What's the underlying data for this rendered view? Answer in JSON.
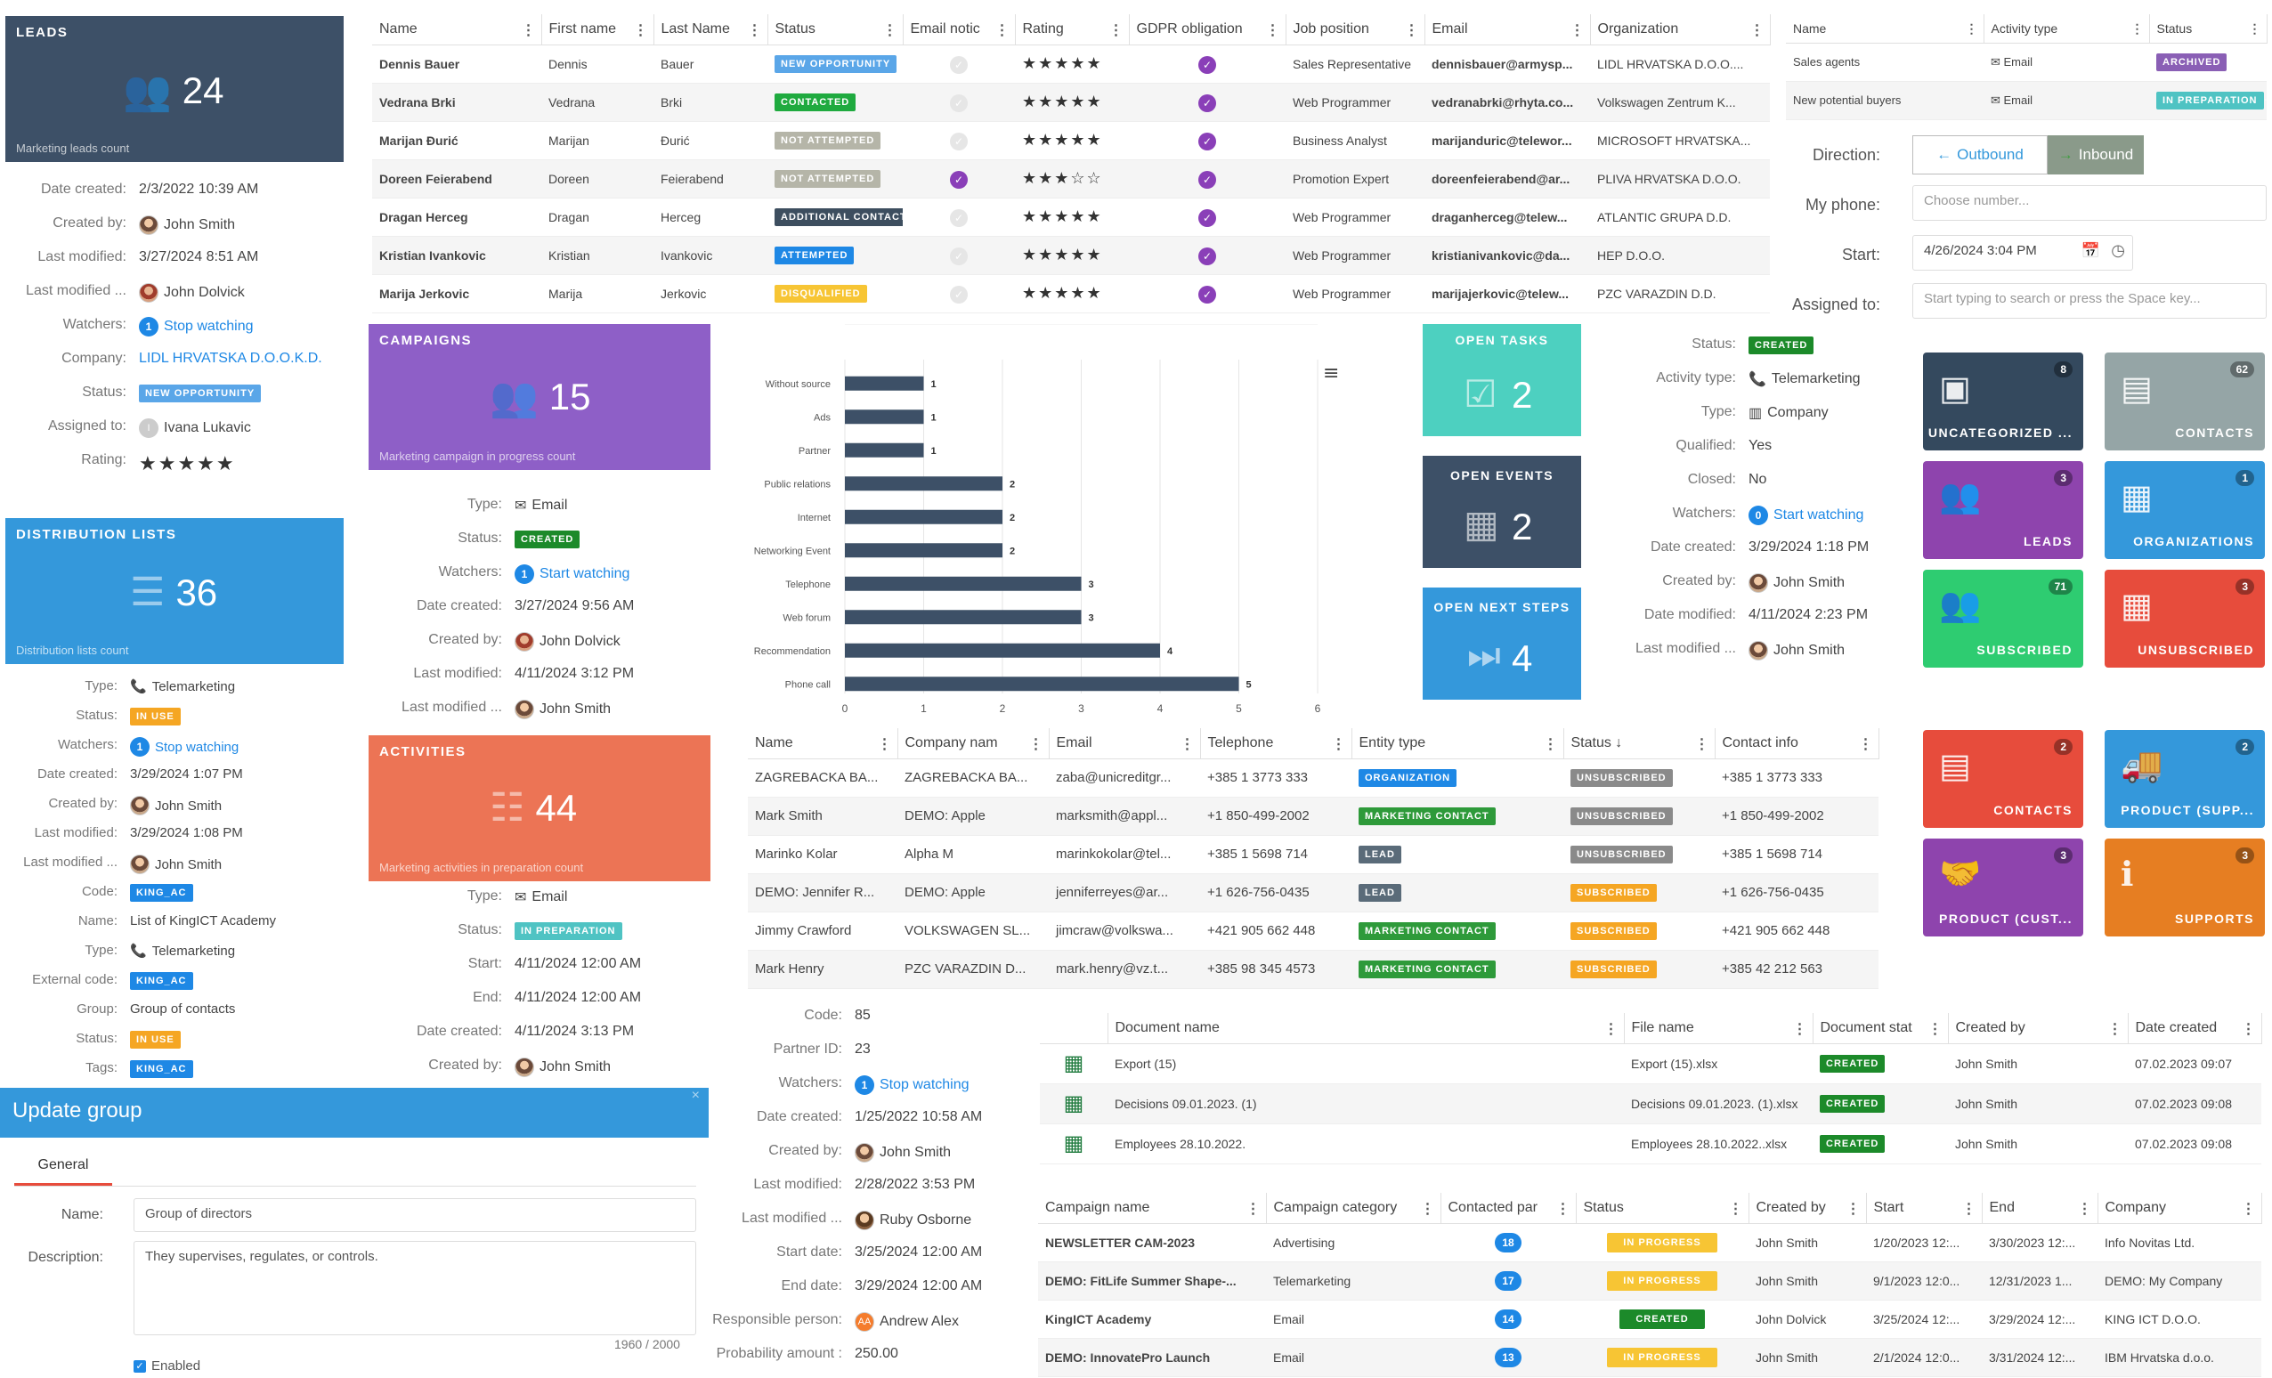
{
  "leads_card": {
    "title": "LEADS",
    "count": "24",
    "footer": "Marketing leads count"
  },
  "lead_fields": [
    {
      "label": "Date created:",
      "value": "2/3/2022 10:39 AM"
    },
    {
      "label": "Created by:",
      "value": "John Smith"
    },
    {
      "label": "Last modified:",
      "value": "3/27/2024 8:51 AM"
    },
    {
      "label": "Last modified ...",
      "value": "John Dolvick"
    },
    {
      "label": "Watchers:",
      "value": "Stop watching",
      "count": "1"
    },
    {
      "label": "Company:",
      "value": "LIDL HRVATSKA D.O.O.K.D."
    },
    {
      "label": "Status:",
      "value": "NEW OPPORTUNITY"
    },
    {
      "label": "Assigned to:",
      "value": "Ivana Lukavic",
      "initial": "I"
    },
    {
      "label": "Rating:",
      "value": "★★★★★"
    }
  ],
  "dist_card": {
    "title": "DISTRIBUTION LISTS",
    "count": "36",
    "footer": "Distribution lists count"
  },
  "dist_fields": [
    {
      "label": "Type:",
      "value": "Telemarketing"
    },
    {
      "label": "Status:",
      "value": "IN USE"
    },
    {
      "label": "Watchers:",
      "value": "Stop watching",
      "count": "1"
    },
    {
      "label": "Date created:",
      "value": "3/29/2024 1:07 PM"
    },
    {
      "label": "Created by:",
      "value": "John Smith"
    },
    {
      "label": "Last modified:",
      "value": "3/29/2024 1:08 PM"
    },
    {
      "label": "Last modified ...",
      "value": "John Smith"
    },
    {
      "label": "Code:",
      "value": "KING_AC"
    },
    {
      "label": "Name:",
      "value": "List of KingICT Academy"
    },
    {
      "label": "Type:",
      "value": "Telemarketing"
    },
    {
      "label": "External code:",
      "value": "KING_AC"
    },
    {
      "label": "Group:",
      "value": "Group of contacts"
    },
    {
      "label": "Status:",
      "value": "IN USE"
    },
    {
      "label": "Tags:",
      "value": "KING_AC"
    }
  ],
  "update_group": {
    "title": "Update group",
    "tab": "General",
    "name_label": "Name:",
    "name_value": "Group of directors",
    "desc_label": "Description:",
    "desc_value": "They supervises, regulates, or controls.",
    "counter": "1960 / 2000",
    "enabled": "Enabled",
    "close": "×"
  },
  "leads_table": {
    "headers": [
      "Name",
      "First name",
      "Last Name",
      "Status",
      "Email notic",
      "Rating",
      "GDPR obligation",
      "Job position",
      "Email",
      "Organization"
    ],
    "rows": [
      [
        "Dennis Bauer",
        "Dennis",
        "Bauer",
        "NEW OPPORTUNITY",
        "0",
        "★★★★★",
        "1",
        "Sales Representative",
        "dennisbauer@armysp...",
        "LIDL HRVATSKA D.O.O...."
      ],
      [
        "Vedrana Brki",
        "Vedrana",
        "Brki",
        "CONTACTED",
        "0",
        "★★★★★",
        "1",
        "Web Programmer",
        "vedranabrki@rhyta.co...",
        "Volkswagen Zentrum K..."
      ],
      [
        "Marijan Đurić",
        "Marijan",
        "Đurić",
        "NOT ATTEMPTED",
        "0",
        "★★★★★",
        "1",
        "Business Analyst",
        "marijanduric@telewor...",
        "MICROSOFT HRVATSKA..."
      ],
      [
        "Doreen Feierabend",
        "Doreen",
        "Feierabend",
        "NOT ATTEMPTED",
        "1",
        "★★★☆☆",
        "1",
        "Promotion Expert",
        "doreenfeierabend@ar...",
        "PLIVA HRVATSKA D.O.O."
      ],
      [
        "Dragan Herceg",
        "Dragan",
        "Herceg",
        "ADDITIONAL CONTACT",
        "0",
        "★★★★★",
        "1",
        "Web Programmer",
        "draganherceg@telew...",
        "ATLANTIC GRUPA D.D."
      ],
      [
        "Kristian Ivankovic",
        "Kristian",
        "Ivankovic",
        "ATTEMPTED",
        "0",
        "★★★★★",
        "1",
        "Web Programmer",
        "kristianivankovic@da...",
        "HEP D.O.O."
      ],
      [
        "Marija Jerkovic",
        "Marija",
        "Jerkovic",
        "DISQUALIFIED",
        "0",
        "★★★★★",
        "1",
        "Web Programmer",
        "marijajerkovic@telew...",
        "PZC VARAZDIN D.D."
      ]
    ]
  },
  "campaigns_card": {
    "title": "CAMPAIGNS",
    "count": "15",
    "footer": "Marketing campaign in progress count"
  },
  "campaign_fields": [
    {
      "label": "Type:",
      "value": "Email"
    },
    {
      "label": "Status:",
      "value": "CREATED"
    },
    {
      "label": "Watchers:",
      "value": "Start watching",
      "count": "1"
    },
    {
      "label": "Date created:",
      "value": "3/27/2024 9:56 AM"
    },
    {
      "label": "Created by:",
      "value": "John Dolvick"
    },
    {
      "label": "Last modified:",
      "value": "4/11/2024 3:12 PM"
    },
    {
      "label": "Last modified ...",
      "value": "John Smith"
    }
  ],
  "activities_card": {
    "title": "ACTIVITIES",
    "count": "44",
    "footer": "Marketing activities in preparation count"
  },
  "activity_fields": [
    {
      "label": "Type:",
      "value": "Email"
    },
    {
      "label": "Status:",
      "value": "IN PREPARATION"
    },
    {
      "label": "Start:",
      "value": "4/11/2024 12:00 AM"
    },
    {
      "label": "End:",
      "value": "4/11/2024 12:00 AM"
    },
    {
      "label": "Date created:",
      "value": "4/11/2024 3:13 PM"
    },
    {
      "label": "Created by:",
      "value": "John Smith"
    }
  ],
  "chart_data": {
    "type": "bar",
    "orientation": "horizontal",
    "categories": [
      "Without source",
      "Ads",
      "Partner",
      "Public relations",
      "Internet",
      "Networking Event",
      "Telephone",
      "Web forum",
      "Recommendation",
      "Phone call"
    ],
    "values": [
      1,
      1,
      1,
      2,
      2,
      2,
      3,
      3,
      4,
      5
    ],
    "xlim": [
      0,
      6
    ],
    "xticks": [
      "0",
      "1",
      "2",
      "3",
      "4",
      "5",
      "6"
    ],
    "color": "#3d5067",
    "grid": true,
    "menu_icon": "≡"
  },
  "open_tasks": {
    "title": "OPEN TASKS",
    "count": "2"
  },
  "open_events": {
    "title": "OPEN EVENTS",
    "count": "2"
  },
  "open_next_steps": {
    "title": "OPEN NEXT STEPS",
    "count": "4"
  },
  "activity_detail": [
    {
      "label": "Status:",
      "value": "CREATED"
    },
    {
      "label": "Activity type:",
      "value": "Telemarketing"
    },
    {
      "label": "Type:",
      "value": "Company"
    },
    {
      "label": "Qualified:",
      "value": "Yes"
    },
    {
      "label": "Closed:",
      "value": "No"
    },
    {
      "label": "Watchers:",
      "value": "Start watching",
      "count": "0"
    },
    {
      "label": "Date created:",
      "value": "3/29/2024 1:18 PM"
    },
    {
      "label": "Created by:",
      "value": "John Smith"
    },
    {
      "label": "Date modified:",
      "value": "4/11/2024 2:23 PM"
    },
    {
      "label": "Last modified ...",
      "value": "John Smith"
    }
  ],
  "lists_table": {
    "headers": [
      "Name",
      "Activity type",
      "Status"
    ],
    "rows": [
      [
        "Sales agents",
        "Email",
        "ARCHIVED"
      ],
      [
        "New potential buyers",
        "Email",
        "IN PREPARATION"
      ]
    ]
  },
  "call_form": {
    "direction_label": "Direction:",
    "outbound": "Outbound",
    "inbound": "Inbound",
    "phone_label": "My phone:",
    "phone_placeholder": "Choose number...",
    "start_label": "Start:",
    "start_value": "4/26/2024 3:04 PM",
    "assigned_label": "Assigned to:",
    "assigned_placeholder": "Start typing to search or press the Space key..."
  },
  "tiles": [
    {
      "label": "UNCATEGORIZED ...",
      "count": "8",
      "color": "#34495e",
      "icon": "▣"
    },
    {
      "label": "CONTACTS",
      "count": "62",
      "color": "#95a5a6",
      "icon": "▤"
    },
    {
      "label": "LEADS",
      "count": "3",
      "color": "#8e44ad",
      "icon": "👥"
    },
    {
      "label": "ORGANIZATIONS",
      "count": "1",
      "color": "#3498db",
      "icon": "▦"
    },
    {
      "label": "SUBSCRIBED",
      "count": "71",
      "color": "#2ecc71",
      "icon": "👥"
    },
    {
      "label": "UNSUBSCRIBED",
      "count": "3",
      "color": "#e74c3c",
      "icon": "▦"
    },
    {
      "label": "CONTACTS",
      "count": "2",
      "color": "#e74c3c",
      "icon": "▤"
    },
    {
      "label": "PRODUCT (SUPP...",
      "count": "2",
      "color": "#3498db",
      "icon": "🚚"
    },
    {
      "label": "PRODUCT (CUST...",
      "count": "3",
      "color": "#8e44ad",
      "icon": "🤝"
    },
    {
      "label": "SUPPORTS",
      "count": "3",
      "color": "#e67e22",
      "icon": "ℹ"
    }
  ],
  "contacts_table": {
    "headers": [
      "Name",
      "Company nam",
      "Email",
      "Telephone",
      "Entity type",
      "Status ↓",
      "Contact info"
    ],
    "rows": [
      [
        "ZAGREBACKA BA...",
        "ZAGREBACKA BA...",
        "zaba@unicreditgr...",
        "+385 1 3773 333",
        "ORGANIZATION",
        "UNSUBSCRIBED",
        "+385 1 3773 333"
      ],
      [
        "Mark Smith",
        "DEMO: Apple",
        "marksmith@appl...",
        "+1 850-499-2002",
        "MARKETING CONTACT",
        "UNSUBSCRIBED",
        "+1 850-499-2002"
      ],
      [
        "Marinko Kolar",
        "Alpha M",
        "marinkokolar@tel...",
        "+385 1 5698 714",
        "LEAD",
        "UNSUBSCRIBED",
        "+385 1 5698 714"
      ],
      [
        "DEMO: Jennifer R...",
        "DEMO: Apple",
        "jenniferreyes@ar...",
        "+1 626-756-0435",
        "LEAD",
        "SUBSCRIBED",
        "+1 626-756-0435"
      ],
      [
        "Jimmy Crawford",
        "VOLKSWAGEN SL...",
        "jimcraw@volkswa...",
        "+421 905 662 448",
        "MARKETING CONTACT",
        "SUBSCRIBED",
        "+421 905 662 448"
      ],
      [
        "Mark Henry",
        "PZC VARAZDIN D...",
        "mark.henry@vz.t...",
        "+385 98 345 4573",
        "MARKETING CONTACT",
        "SUBSCRIBED",
        "+385 42 212 563"
      ]
    ]
  },
  "opportunity_fields": [
    {
      "label": "Code:",
      "value": "85"
    },
    {
      "label": "Partner ID:",
      "value": "23"
    },
    {
      "label": "Watchers:",
      "value": "Stop watching",
      "count": "1"
    },
    {
      "label": "Date created:",
      "value": "1/25/2022 10:58 AM"
    },
    {
      "label": "Created by:",
      "value": "John Smith"
    },
    {
      "label": "Last modified:",
      "value": "2/28/2022 3:53 PM"
    },
    {
      "label": "Last modified ...",
      "value": "Ruby Osborne"
    },
    {
      "label": "Start date:",
      "value": "3/25/2024 12:00 AM"
    },
    {
      "label": "End date:",
      "value": "3/29/2024 12:00 AM"
    },
    {
      "label": "Responsible person:",
      "value": "Andrew Alex",
      "initial": "AA"
    },
    {
      "label": "Probability amount :",
      "value": "250.00"
    }
  ],
  "docs_table": {
    "headers": [
      "",
      "Document name",
      "File name",
      "Document stat",
      "Created by",
      "Date created"
    ],
    "rows": [
      [
        "Export (15)",
        "Export (15).xlsx",
        "CREATED",
        "John Smith",
        "07.02.2023 09:07"
      ],
      [
        "Decisions 09.01.2023. (1)",
        "Decisions 09.01.2023. (1).xlsx",
        "CREATED",
        "John Smith",
        "07.02.2023 09:08"
      ],
      [
        "Employees 28.10.2022.",
        "Employees 28.10.2022..xlsx",
        "CREATED",
        "John Smith",
        "07.02.2023 09:08"
      ]
    ]
  },
  "campaign_table": {
    "headers": [
      "Campaign name",
      "Campaign category",
      "Contacted par",
      "Status",
      "Created by",
      "Start",
      "End",
      "Company"
    ],
    "rows": [
      [
        "NEWSLETTER CAM-2023",
        "Advertising",
        "18",
        "IN PROGRESS",
        "John Smith",
        "1/20/2023 12:...",
        "3/30/2023 12:...",
        "Info Novitas Ltd."
      ],
      [
        "DEMO: FitLife Summer Shape-...",
        "Telemarketing",
        "17",
        "IN PROGRESS",
        "John Smith",
        "9/1/2023 12:0...",
        "12/31/2023 1...",
        "DEMO: My Company"
      ],
      [
        "KingICT Academy",
        "Email",
        "14",
        "CREATED",
        "John Dolvick",
        "3/25/2024 12:...",
        "3/29/2024 12:...",
        "KING ICT D.O.O."
      ],
      [
        "DEMO: InnovatePro Launch",
        "Email",
        "13",
        "IN PROGRESS",
        "John Smith",
        "2/1/2024 12:0...",
        "3/31/2024 12:...",
        "IBM Hrvatska d.o.o."
      ]
    ]
  }
}
